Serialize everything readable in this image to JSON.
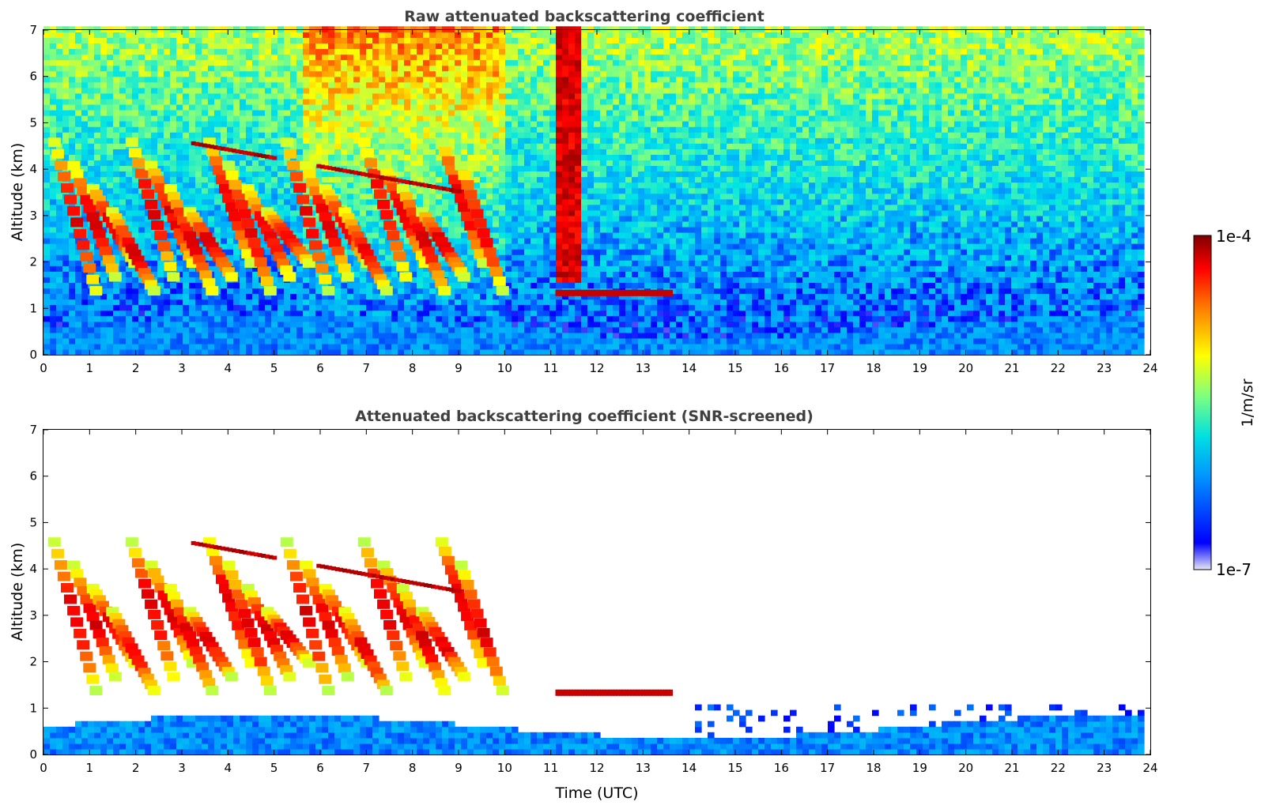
{
  "chart_data": [
    {
      "type": "heatmap",
      "title": "Raw attenuated backscattering coefficient",
      "xlabel": "",
      "ylabel": "Altitude (km)",
      "xlim": [
        0,
        24
      ],
      "ylim": [
        0,
        7
      ],
      "xticks": [
        "0",
        "1",
        "2",
        "3",
        "4",
        "5",
        "6",
        "7",
        "8",
        "9",
        "10",
        "11",
        "12",
        "13",
        "14",
        "15",
        "16",
        "17",
        "18",
        "19",
        "20",
        "21",
        "22",
        "23",
        "24"
      ],
      "yticks": [
        "0",
        "1",
        "2",
        "3",
        "4",
        "5",
        "6",
        "7"
      ],
      "data_end_time": 23.8,
      "screened": false
    },
    {
      "type": "heatmap",
      "title": "Attenuated backscattering coefficient (SNR-screened)",
      "xlabel": "Time (UTC)",
      "ylabel": "Altitude (km)",
      "xlim": [
        0,
        24
      ],
      "ylim": [
        0,
        7
      ],
      "xticks": [
        "0",
        "1",
        "2",
        "3",
        "4",
        "5",
        "6",
        "7",
        "8",
        "9",
        "10",
        "11",
        "12",
        "13",
        "14",
        "15",
        "16",
        "17",
        "18",
        "19",
        "20",
        "21",
        "22",
        "23",
        "24"
      ],
      "yticks": [
        "0",
        "1",
        "2",
        "3",
        "4",
        "5",
        "6",
        "7"
      ],
      "data_end_time": 23.8,
      "screened": true
    }
  ],
  "colorbar": {
    "label": "1/m/sr",
    "max_label": "1e-4",
    "min_label": "1e-7",
    "scale": "log",
    "range": [
      1e-07,
      0.0001
    ],
    "colormap": [
      "#e6e6f5",
      "#0000ff",
      "#00a0ff",
      "#00e5e5",
      "#80ff80",
      "#ffff00",
      "#ff8000",
      "#ff0000",
      "#800000"
    ]
  }
}
